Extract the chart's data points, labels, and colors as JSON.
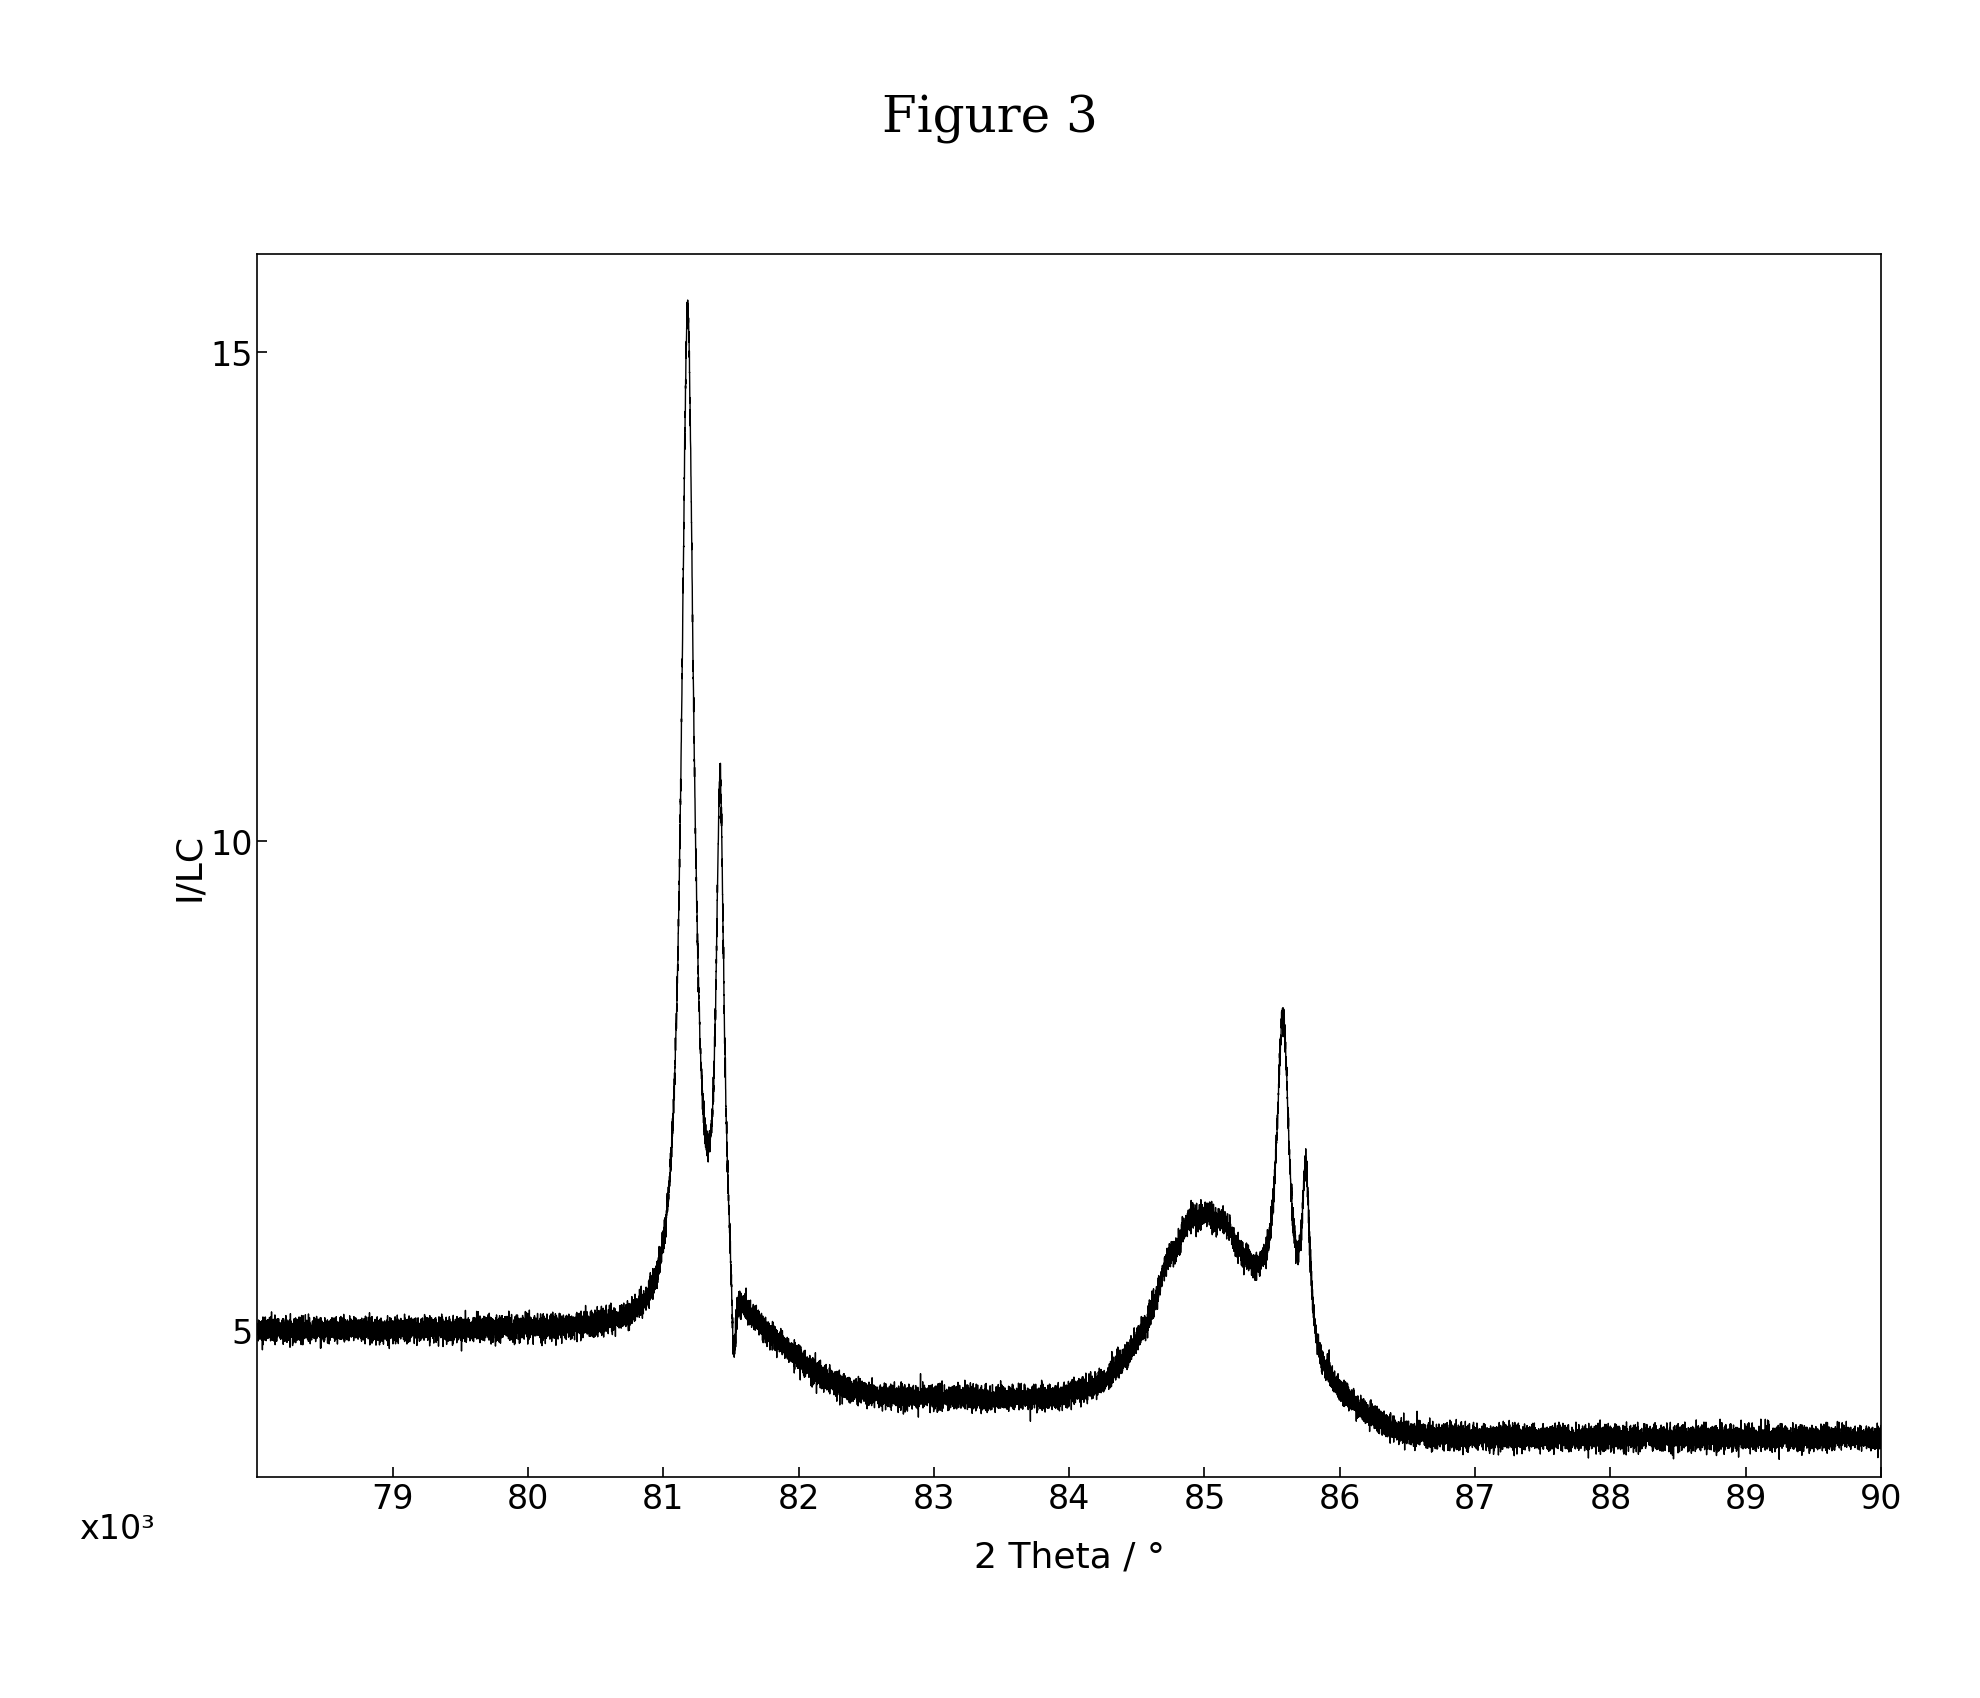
{
  "title": "Figure 3",
  "xlabel": "2 Theta / °",
  "ylabel": "I/LC",
  "ylabel2": "x10³",
  "xmin": 78.0,
  "xmax": 90.0,
  "ymin": 3.5,
  "ymax": 16.0,
  "yticks": [
    5.0,
    10.0,
    15.0
  ],
  "xticks": [
    79,
    80,
    81,
    82,
    83,
    84,
    85,
    86,
    87,
    88,
    89,
    90
  ],
  "line_color": "#000000",
  "bg_color": "#ffffff",
  "title_fontsize": 36,
  "label_fontsize": 26,
  "tick_fontsize": 24
}
